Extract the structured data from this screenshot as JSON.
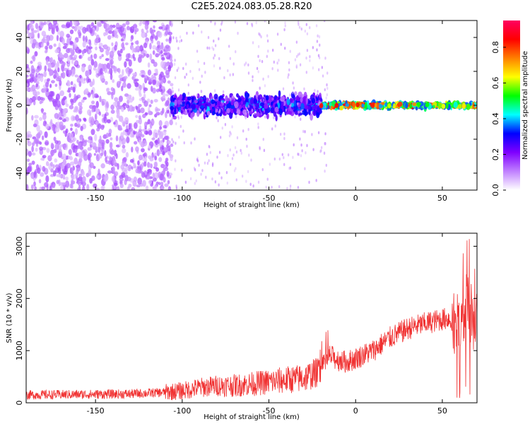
{
  "title": "C2E5.2024.083.05.28.R20",
  "chart_data": [
    {
      "type": "heatmap",
      "xlabel": "Height of straight line (km)",
      "ylabel": "Frequency (Hz)",
      "xlim": [
        -190,
        70
      ],
      "ylim": [
        -50,
        50
      ],
      "xticks": [
        -150,
        -100,
        -50,
        0,
        50
      ],
      "yticks": [
        -40,
        -20,
        0,
        20,
        40
      ],
      "colorbar": {
        "label": "Normalized spectral amplitude",
        "range": [
          0,
          0.95
        ],
        "ticks": [
          "0.0",
          "0.2",
          "0.4",
          "0.6",
          "0.8"
        ],
        "colormap": [
          "#ffffff",
          "#c080ff",
          "#7f00ff",
          "#0000ff",
          "#00ffff",
          "#00ff00",
          "#ffff00",
          "#ff8000",
          "#ff0000",
          "#ff0060"
        ]
      },
      "regions": [
        {
          "x_range": [
            -190,
            -106
          ],
          "f_range": [
            -50,
            50
          ],
          "amplitude": 0.12,
          "note": "broadband scattered noise"
        },
        {
          "x_range": [
            -106,
            -20
          ],
          "f_range": [
            -8,
            8
          ],
          "amplitude": 0.25,
          "note": "concentrated band near 0 Hz"
        },
        {
          "x_range": [
            -20,
            70
          ],
          "f_range": [
            -2,
            2
          ],
          "amplitude": 0.8,
          "note": "narrow strong band at 0 Hz"
        }
      ]
    },
    {
      "type": "line",
      "xlabel": "Height of straight line (km)",
      "ylabel": "SNR (10 * v/v)",
      "xlim": [
        -190,
        70
      ],
      "ylim": [
        0,
        3250
      ],
      "xticks": [
        -150,
        -100,
        -50,
        0,
        50
      ],
      "yticks": [
        0,
        1000,
        2000,
        3000
      ],
      "color": "#f03030",
      "series": [
        {
          "x": [
            -190,
            -160,
            -130,
            -110,
            -100,
            -90,
            -80,
            -70,
            -60,
            -50,
            -40,
            -30,
            -20,
            -15,
            -10,
            -5,
            0,
            10,
            20,
            30,
            40,
            50,
            55,
            60,
            62,
            65,
            68,
            70
          ],
          "y": [
            150,
            160,
            170,
            200,
            230,
            290,
            330,
            330,
            360,
            400,
            440,
            470,
            620,
            900,
            820,
            780,
            850,
            1000,
            1250,
            1420,
            1520,
            1600,
            1620,
            1400,
            1700,
            1900,
            1500,
            1800
          ]
        }
      ]
    }
  ]
}
